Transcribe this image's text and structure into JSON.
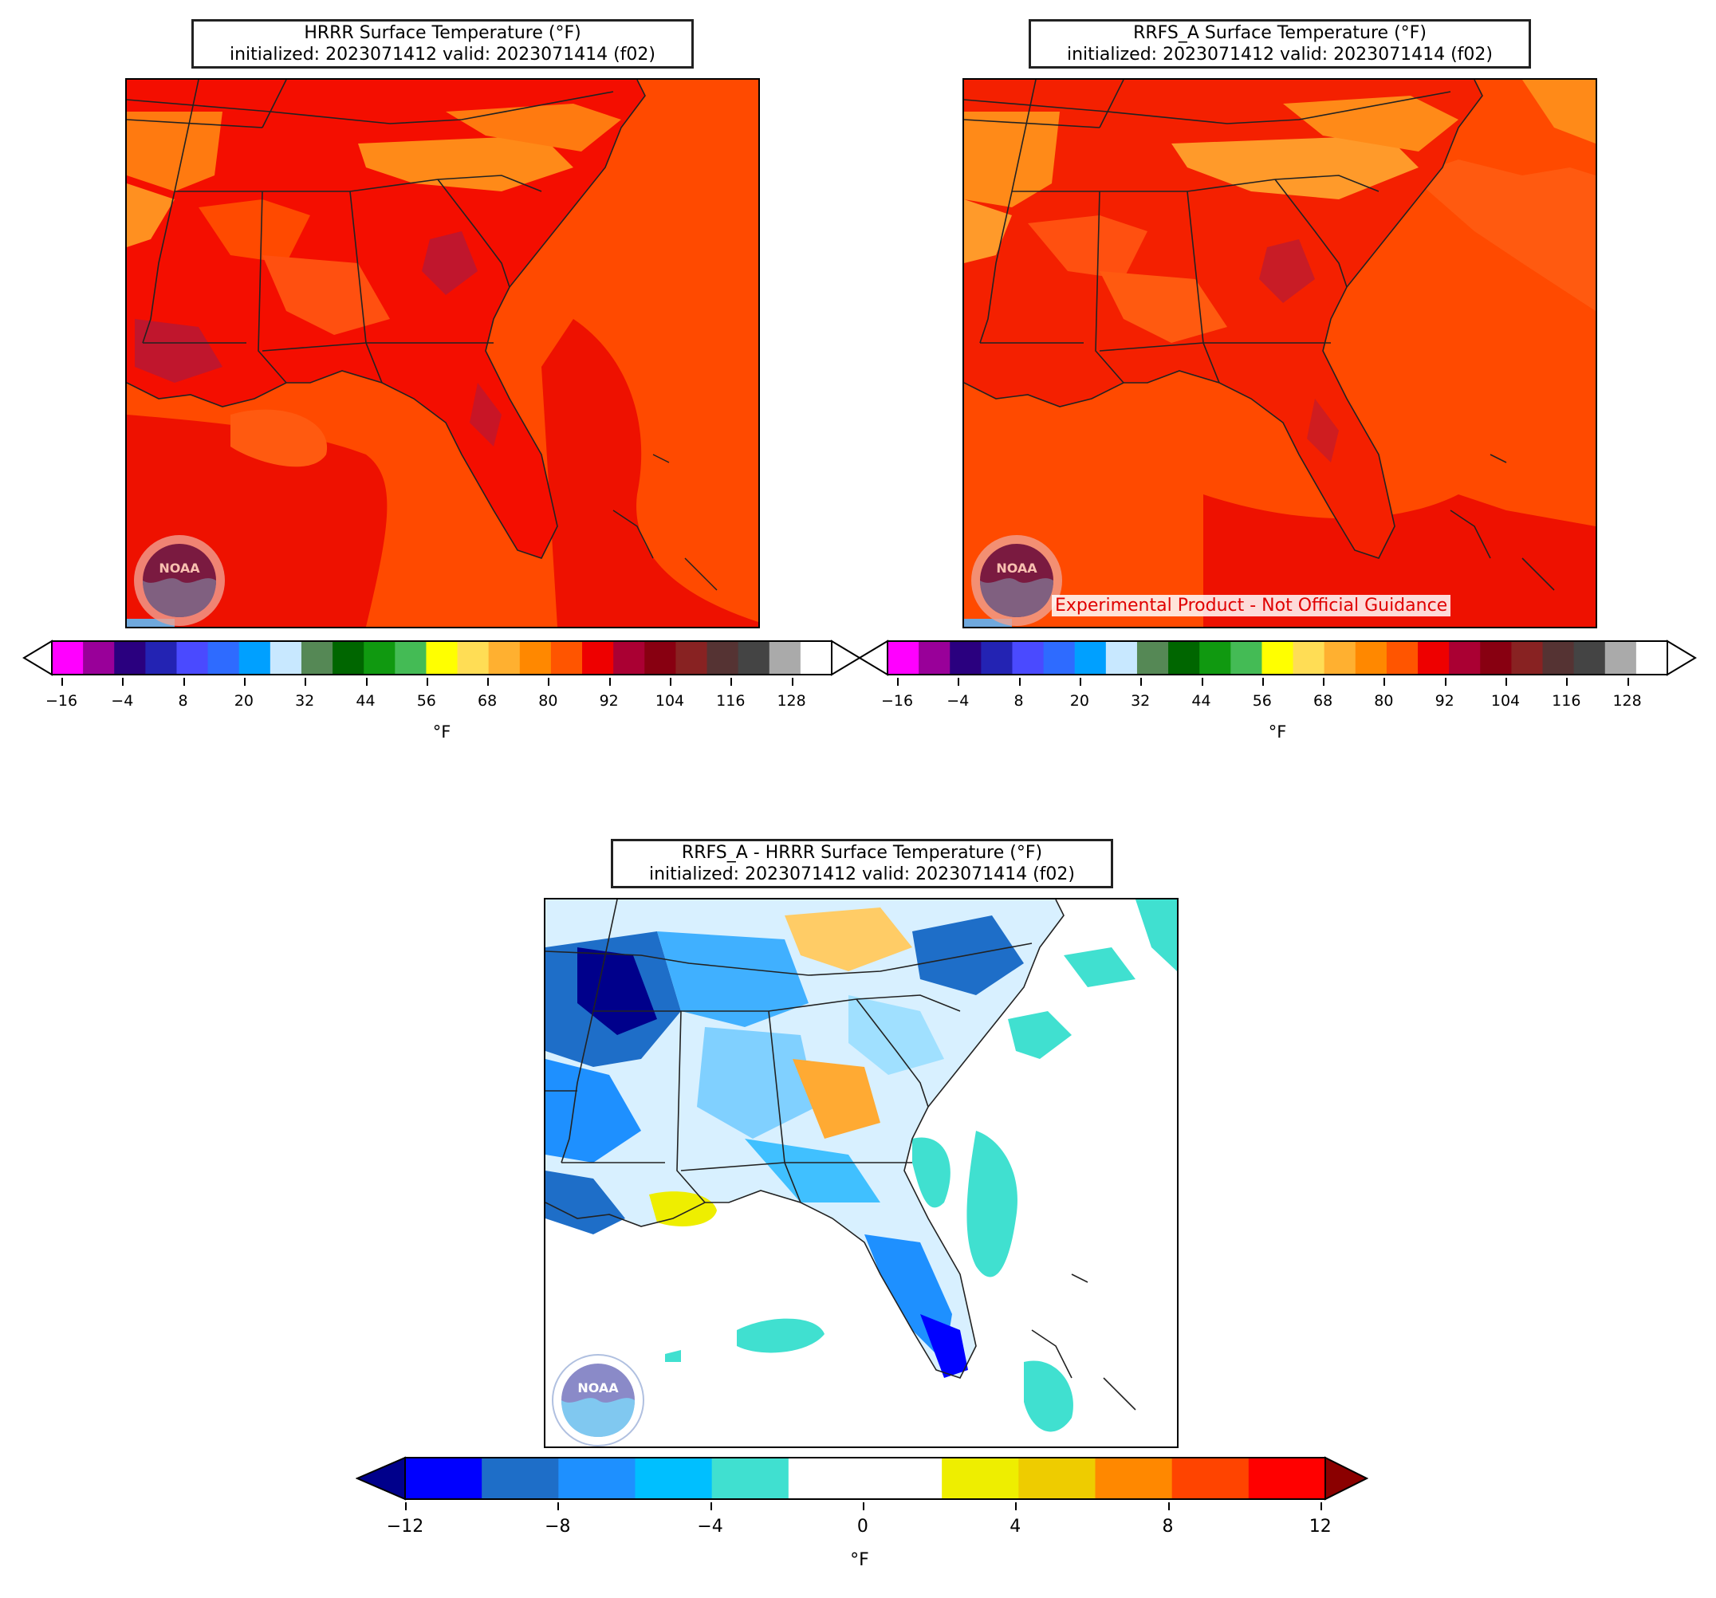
{
  "panels": {
    "hrrr": {
      "title_line1": "HRRR Surface Temperature (°F)",
      "title_line2": "initialized: 2023071412 valid: 2023071414 (f02)",
      "colorbar_ticks": [
        "−16",
        "−4",
        "8",
        "20",
        "32",
        "44",
        "56",
        "68",
        "80",
        "92",
        "104",
        "116",
        "128"
      ],
      "colorbar_unit": "°F",
      "logo_text": "NOAA"
    },
    "rrfs": {
      "title_line1": "RRFS_A Surface Temperature (°F)",
      "title_line2": "initialized: 2023071412 valid: 2023071414 (f02)",
      "colorbar_ticks": [
        "−16",
        "−4",
        "8",
        "20",
        "32",
        "44",
        "56",
        "68",
        "80",
        "92",
        "104",
        "116",
        "128"
      ],
      "colorbar_unit": "°F",
      "logo_text": "NOAA",
      "note": "Experimental Product - Not Official Guidance"
    },
    "diff": {
      "title_line1": "RRFS_A - HRRR Surface Temperature (°F)",
      "title_line2": "initialized: 2023071412 valid: 2023071414 (f02)",
      "colorbar_ticks": [
        "−12",
        "−8",
        "−4",
        "0",
        "4",
        "8",
        "12"
      ],
      "colorbar_unit": "°F",
      "logo_text": "NOAA"
    }
  },
  "temp_colorbar": {
    "colors": [
      "#ff00ff",
      "#990099",
      "#2a007f",
      "#2323b3",
      "#4a4aff",
      "#2e6bff",
      "#00a0ff",
      "#c8e8ff",
      "#558855",
      "#006600",
      "#109910",
      "#44bb55",
      "#ffff00",
      "#ffdd55",
      "#ffb030",
      "#ff8800",
      "#ff5500",
      "#ee0000",
      "#aa0033",
      "#880011",
      "#882222",
      "#553333",
      "#444444",
      "#aaaaaa",
      "#ffffff"
    ],
    "over_color": "#ffffff",
    "under_color": "#ffffff"
  },
  "diff_colorbar": {
    "colors": [
      "#0000ff",
      "#1e6ec8",
      "#1e90ff",
      "#00bfff",
      "#40e0d0",
      "#ffffff",
      "#ffffff",
      "#eeee00",
      "#eecc00",
      "#ff8800",
      "#ff4400",
      "#ff0000"
    ],
    "under_color": "#00008b",
    "over_color": "#8b0000"
  }
}
